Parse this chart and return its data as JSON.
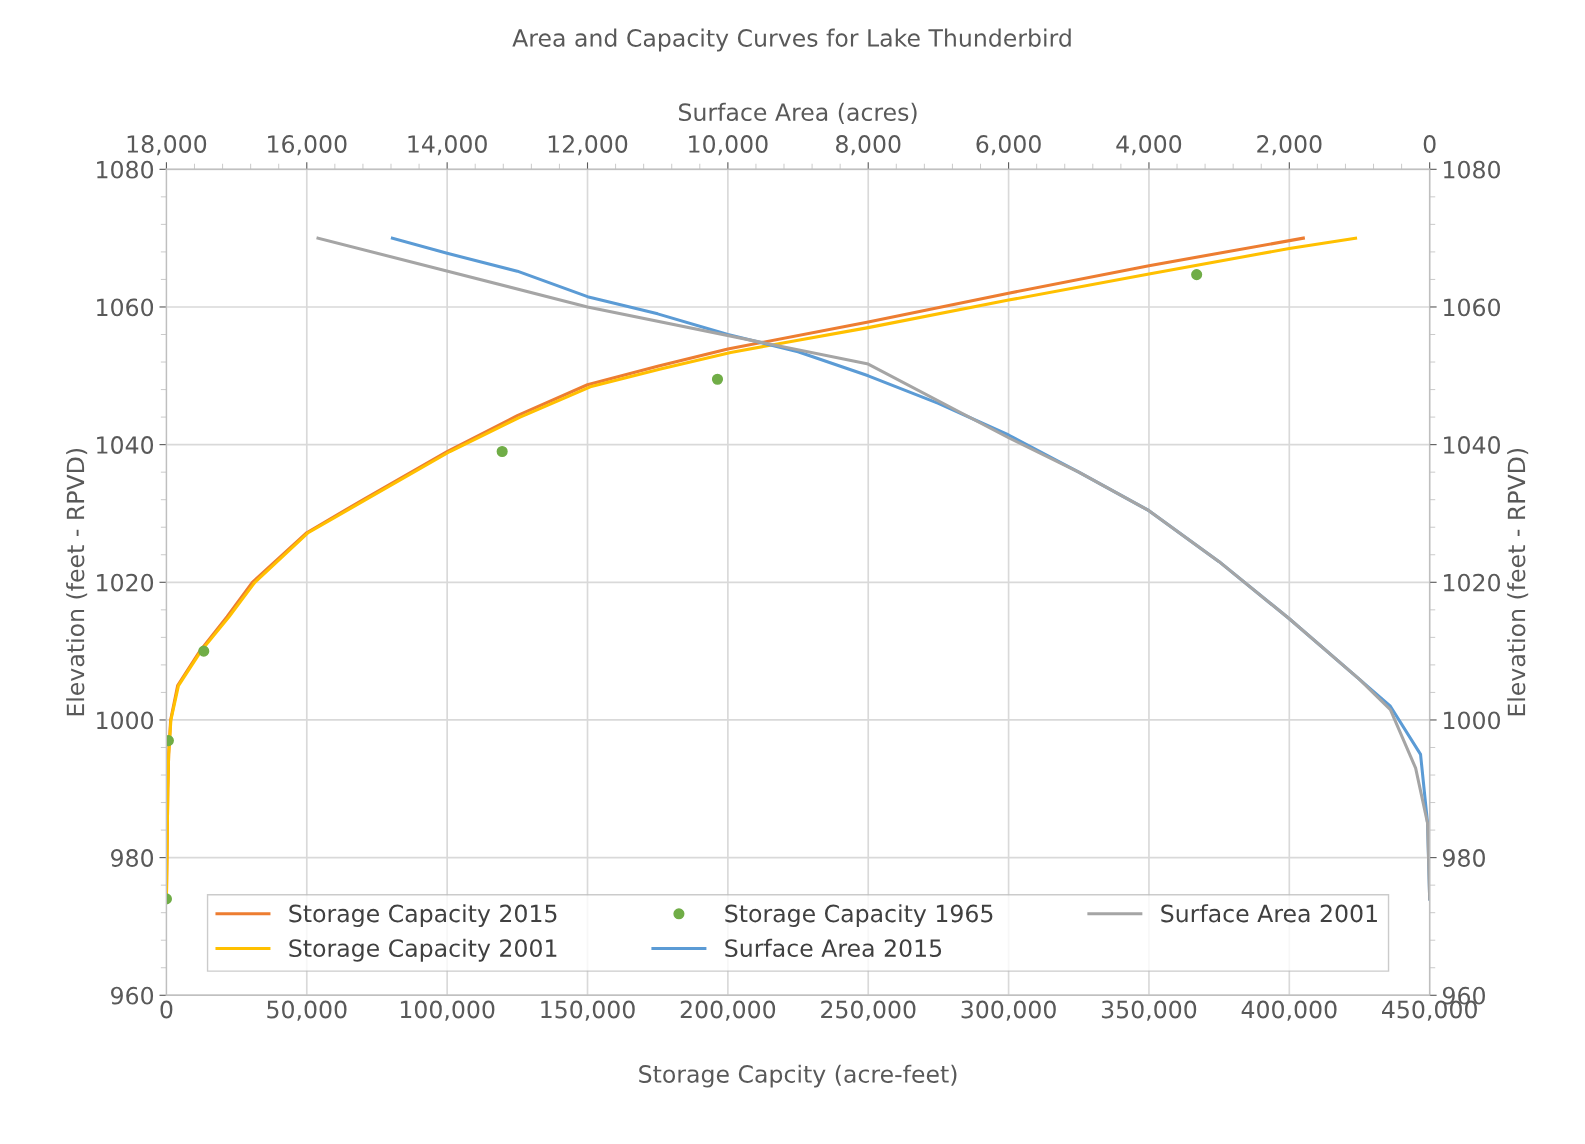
{
  "chart_data": {
    "type": "line",
    "title": "Area and Capacity Curves for Lake Thunderbird",
    "x2label": "Surface Area (acres)",
    "xlabel": "Storage Capcity (acre-feet)",
    "ylabel": "Elevation (feet - RPVD)",
    "y2label": "Elevation (feet - RPVD)",
    "xlim": [
      0,
      450000
    ],
    "xticks": [
      0,
      {
        "value": 50000,
        "label": "50,000"
      },
      {
        "value": 100000,
        "label": "100,000"
      },
      {
        "value": 150000,
        "label": "150,000"
      },
      {
        "value": 200000,
        "label": "200,000"
      },
      {
        "value": 250000,
        "label": "250,000"
      },
      {
        "value": 300000,
        "label": "300,000"
      },
      {
        "value": 350000,
        "label": "350,000"
      },
      {
        "value": 400000,
        "label": "400,000"
      },
      {
        "value": 450000,
        "label": "450,000"
      }
    ],
    "x2lim": [
      18000,
      0
    ],
    "x2ticks": [
      {
        "value": 18000,
        "label": "18,000"
      },
      {
        "value": 16000,
        "label": "16,000"
      },
      {
        "value": 14000,
        "label": "14,000"
      },
      {
        "value": 12000,
        "label": "12,000"
      },
      {
        "value": 10000,
        "label": "10,000"
      },
      {
        "value": 8000,
        "label": "8,000"
      },
      {
        "value": 6000,
        "label": "6,000"
      },
      {
        "value": 4000,
        "label": "4,000"
      },
      {
        "value": 2000,
        "label": "2,000"
      },
      0
    ],
    "ylim": [
      960,
      1080
    ],
    "yticks": [
      960,
      980,
      1000,
      1020,
      1040,
      1060,
      1080
    ],
    "y2lim": [
      960,
      1080
    ],
    "y2ticks": [
      960,
      980,
      1000,
      1020,
      1040,
      1060,
      1080
    ],
    "grid": true,
    "legend": "bottom",
    "series": [
      {
        "name": "Storage Capacity 2015",
        "color": "#ed7d31",
        "x": [
          0,
          200,
          500,
          800,
          1500,
          4000,
          11900,
          21600,
          30600,
          50000,
          70000,
          100000,
          125000,
          150000,
          175000,
          200000,
          250000,
          300000,
          350000,
          405000
        ],
        "values": [
          974,
          980,
          990,
          995,
          1000,
          1005,
          1010,
          1015,
          1020,
          1027.2,
          1032,
          1039,
          1044.2,
          1048.7,
          1051.4,
          1053.9,
          1057.8,
          1062,
          1066,
          1070
        ]
      },
      {
        "name": "Storage Capacity 2001",
        "color": "#ffc000",
        "x": [
          0,
          200,
          500,
          800,
          1600,
          4300,
          12300,
          22300,
          31500,
          50500,
          71000,
          101000,
          126000,
          151000,
          176000,
          201000,
          250000,
          300000,
          350000,
          400000,
          423600
        ],
        "values": [
          974,
          980,
          990,
          995,
          1000,
          1005,
          1010,
          1015,
          1020,
          1027.2,
          1032,
          1039,
          1044,
          1048.4,
          1051,
          1053.4,
          1057,
          1061,
          1064.8,
          1068.5,
          1070
        ]
      },
      {
        "name": "Storage Capacity 1965",
        "color": "#70ad47",
        "type": "scatter",
        "marker": "circle",
        "x": [
          0,
          700,
          13300,
          119600,
          196300,
          367000
        ],
        "values": [
          974,
          997,
          1010,
          1039,
          1049.5,
          1064.7
        ]
      },
      {
        "name": "Surface Area 2015",
        "color": "#5b9bd5",
        "axis": "x2",
        "x": [
          14780,
          14000,
          13000,
          12000,
          11000,
          10000,
          9000,
          8000,
          7000,
          6000,
          5000,
          4000,
          3000,
          2000,
          1000,
          560,
          130,
          30,
          0
        ],
        "values": [
          1070,
          1067.8,
          1065.2,
          1061.5,
          1059,
          1056,
          1053.5,
          1050,
          1046,
          1041.4,
          1036,
          1030.4,
          1023,
          1014.7,
          1005.9,
          1002,
          995,
          985,
          974
        ]
      },
      {
        "name": "Surface Area 2001",
        "color": "#a5a5a5",
        "axis": "x2",
        "x": [
          15840,
          12000,
          8000,
          6000,
          5000,
          4000,
          3000,
          2000,
          1000,
          560,
          200,
          30,
          0
        ],
        "values": [
          1070,
          1060,
          1051.7,
          1041,
          1036,
          1030.4,
          1023,
          1014.7,
          1005.9,
          1001.5,
          993,
          985,
          974
        ]
      }
    ]
  }
}
